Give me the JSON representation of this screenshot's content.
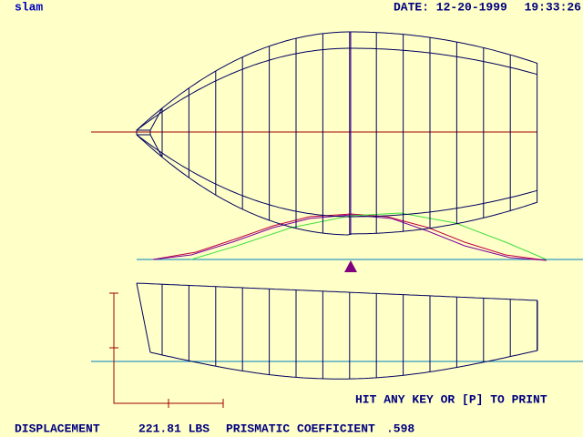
{
  "header": {
    "file": "slam",
    "date": "DATE: 12-20-1999",
    "time": "19:33:26"
  },
  "prompt": "HIT ANY KEY OR [P] TO PRINT",
  "footer": {
    "displacement_label": "DISPLACEMENT",
    "displacement_value": "221.81 LBS",
    "prismatic_label": "PRISMATIC COEFFICIENT",
    "prismatic_value": ".598"
  }
}
